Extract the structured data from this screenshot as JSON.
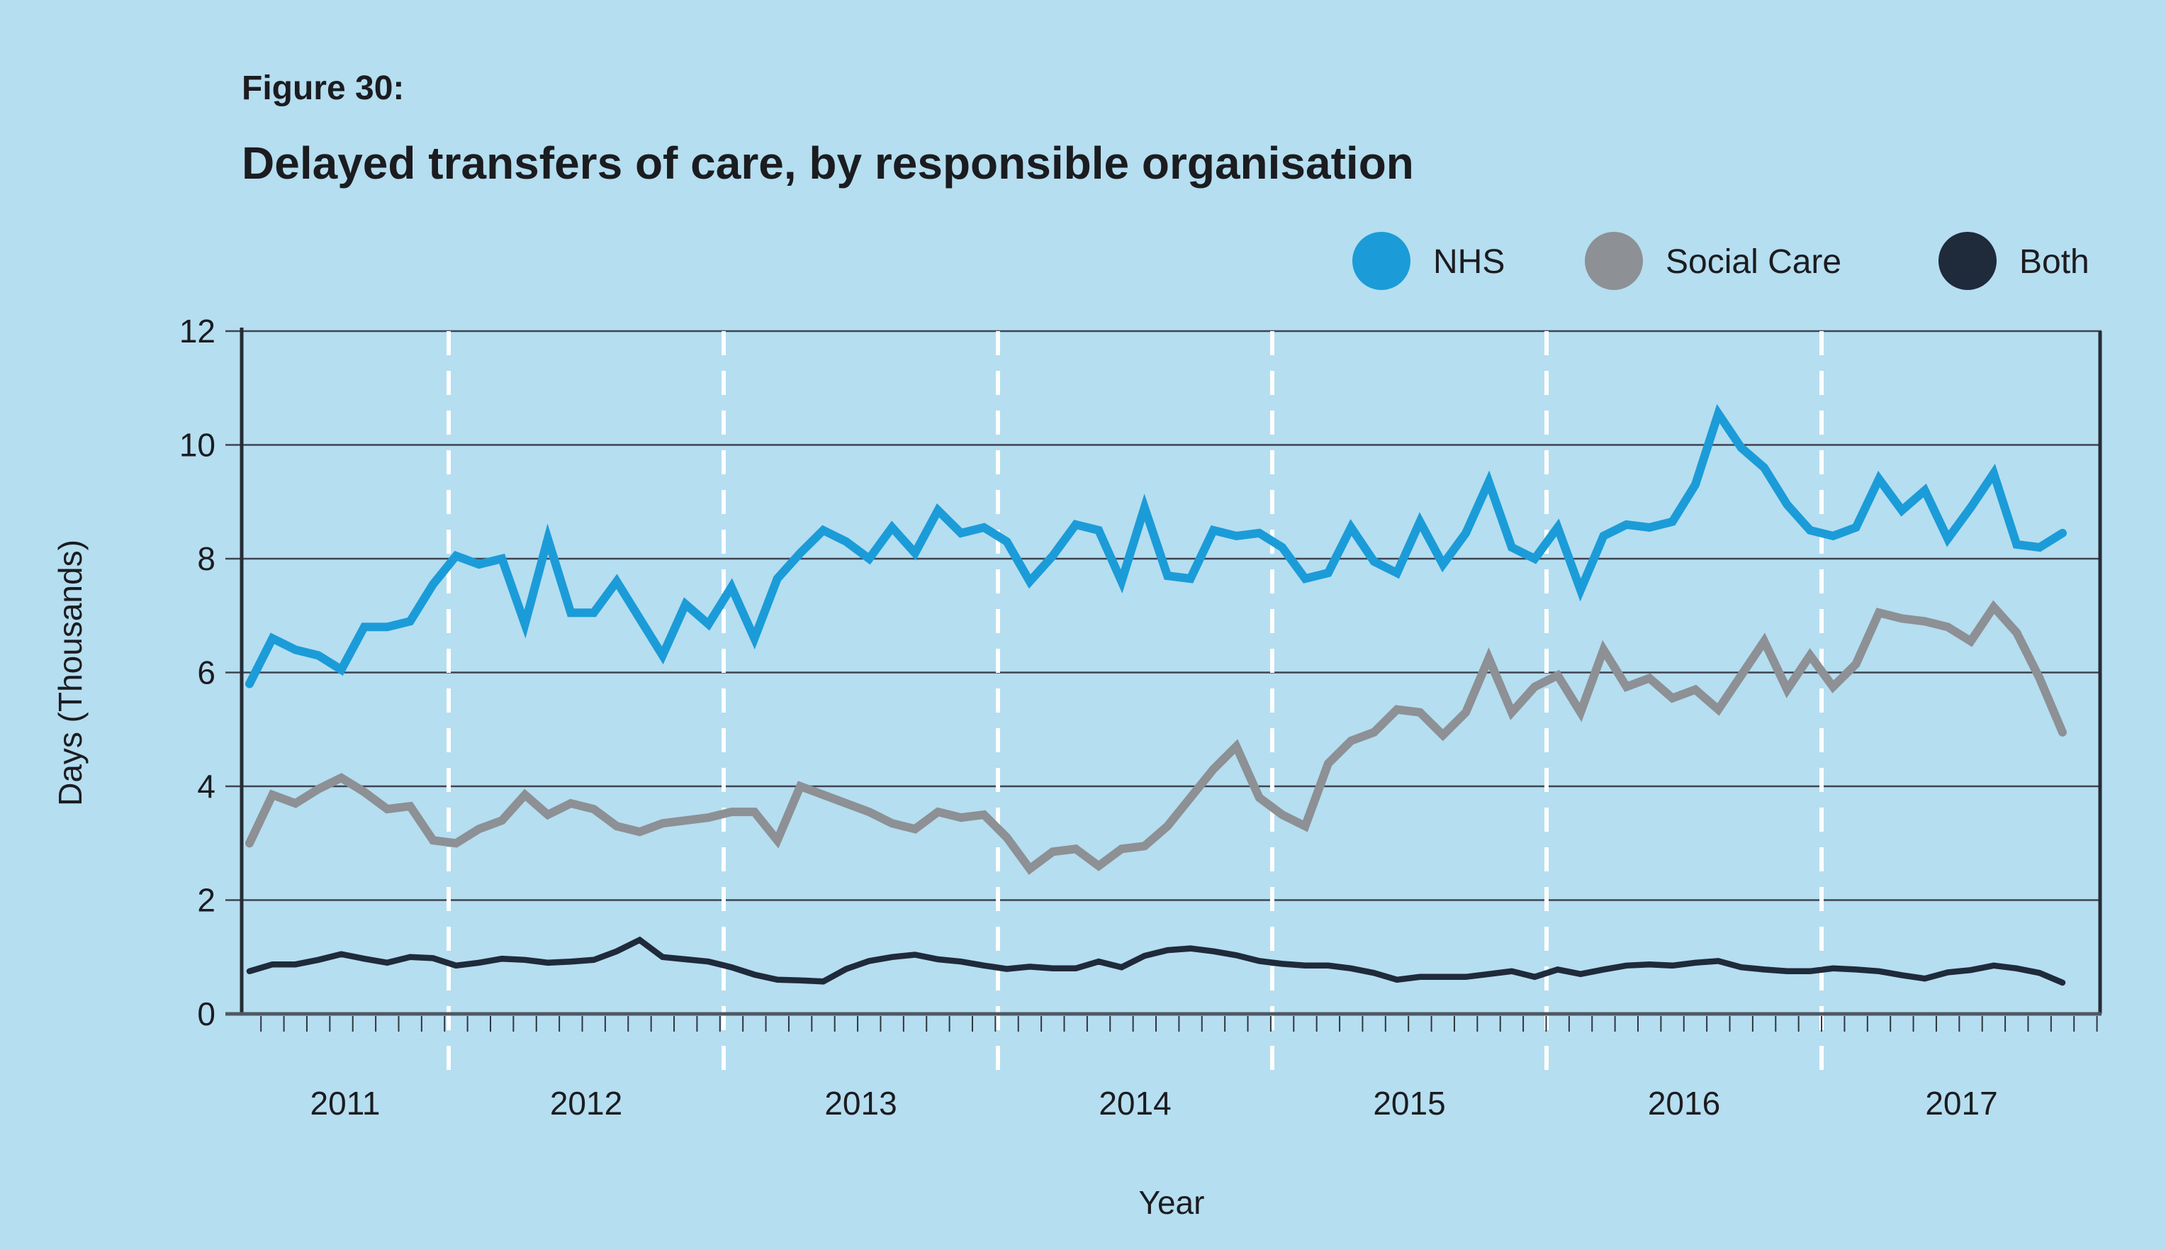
{
  "figure_label": "Figure 30:",
  "title": "Delayed transfers of care, by responsible organisation",
  "legend": {
    "items": [
      {
        "label": "NHS",
        "color": "#1b9cd8"
      },
      {
        "label": "Social Care",
        "color": "#8d9094"
      },
      {
        "label": "Both",
        "color": "#1f2a3a"
      }
    ]
  },
  "axes": {
    "x_title": "Year",
    "y_title": "Days (Thousands)"
  },
  "chart_data": {
    "type": "line",
    "title": "Delayed transfers of care, by responsible organisation",
    "xlabel": "Year",
    "ylabel": "Days (Thousands)",
    "ylim": [
      0,
      12
    ],
    "yticks": [
      0,
      2,
      4,
      6,
      8,
      10,
      12
    ],
    "x_year_labels": [
      "2011",
      "2012",
      "2013",
      "2014",
      "2015",
      "2016",
      "2017"
    ],
    "x_unit": "month",
    "grid": {
      "horizontal": true,
      "vertical_dashed_year_boundaries": true
    },
    "legend_position": "top-right",
    "series": [
      {
        "name": "NHS",
        "color": "#1b9cd8",
        "values": [
          5.8,
          6.6,
          6.4,
          6.3,
          6.05,
          6.8,
          6.8,
          6.9,
          7.55,
          8.05,
          7.9,
          8.0,
          6.85,
          8.35,
          7.05,
          7.05,
          7.6,
          6.95,
          6.3,
          7.2,
          6.85,
          7.5,
          6.6,
          7.65,
          8.1,
          8.5,
          8.3,
          8.0,
          8.55,
          8.1,
          8.85,
          8.45,
          8.55,
          8.3,
          7.6,
          8.05,
          8.6,
          8.5,
          7.6,
          8.9,
          7.7,
          7.65,
          8.5,
          8.4,
          8.45,
          8.2,
          7.65,
          7.75,
          8.55,
          7.95,
          7.75,
          8.65,
          7.9,
          8.45,
          9.35,
          8.2,
          8.0,
          8.55,
          7.45,
          8.4,
          8.6,
          8.55,
          8.65,
          9.3,
          10.55,
          9.95,
          9.6,
          8.95,
          8.5,
          8.4,
          8.55,
          9.4,
          8.85,
          9.2,
          8.35,
          8.9,
          9.5,
          8.25,
          8.2,
          8.45
        ]
      },
      {
        "name": "Social Care",
        "color": "#8d9094",
        "values": [
          3.0,
          3.85,
          3.7,
          3.95,
          4.15,
          3.9,
          3.6,
          3.65,
          3.05,
          3.0,
          3.25,
          3.4,
          3.85,
          3.5,
          3.7,
          3.6,
          3.3,
          3.2,
          3.35,
          3.4,
          3.45,
          3.55,
          3.55,
          3.05,
          4.0,
          3.85,
          3.7,
          3.55,
          3.35,
          3.25,
          3.55,
          3.45,
          3.5,
          3.1,
          2.55,
          2.85,
          2.9,
          2.6,
          2.9,
          2.95,
          3.3,
          3.8,
          4.3,
          4.7,
          3.8,
          3.5,
          3.3,
          4.4,
          4.8,
          4.95,
          5.35,
          5.3,
          4.9,
          5.3,
          6.25,
          5.3,
          5.75,
          5.95,
          5.3,
          6.4,
          5.75,
          5.9,
          5.55,
          5.7,
          5.35,
          5.95,
          6.55,
          5.7,
          6.3,
          5.75,
          6.15,
          7.05,
          6.95,
          6.9,
          6.8,
          6.55,
          7.15,
          6.7,
          5.9,
          4.95
        ]
      },
      {
        "name": "Both",
        "color": "#1f2a3a",
        "values": [
          0.75,
          0.87,
          0.87,
          0.95,
          1.05,
          0.97,
          0.9,
          1.0,
          0.98,
          0.85,
          0.9,
          0.97,
          0.95,
          0.9,
          0.92,
          0.95,
          1.1,
          1.3,
          1.0,
          0.96,
          0.92,
          0.82,
          0.69,
          0.6,
          0.59,
          0.57,
          0.79,
          0.93,
          1.0,
          1.04,
          0.96,
          0.92,
          0.85,
          0.79,
          0.83,
          0.8,
          0.8,
          0.92,
          0.82,
          1.02,
          1.12,
          1.15,
          1.1,
          1.03,
          0.93,
          0.88,
          0.85,
          0.85,
          0.8,
          0.72,
          0.6,
          0.65,
          0.65,
          0.65,
          0.7,
          0.75,
          0.65,
          0.78,
          0.7,
          0.78,
          0.85,
          0.87,
          0.85,
          0.9,
          0.93,
          0.82,
          0.78,
          0.75,
          0.75,
          0.8,
          0.78,
          0.75,
          0.68,
          0.62,
          0.73,
          0.77,
          0.85,
          0.8,
          0.72,
          0.55
        ]
      }
    ]
  },
  "colors": {
    "background": "#b5def0",
    "gridline": "#3e4450",
    "axis_line": "#262c35",
    "bottom_axis_line": "#4e5864",
    "year_dash": "#ffffff",
    "text": "#1b1c20"
  }
}
